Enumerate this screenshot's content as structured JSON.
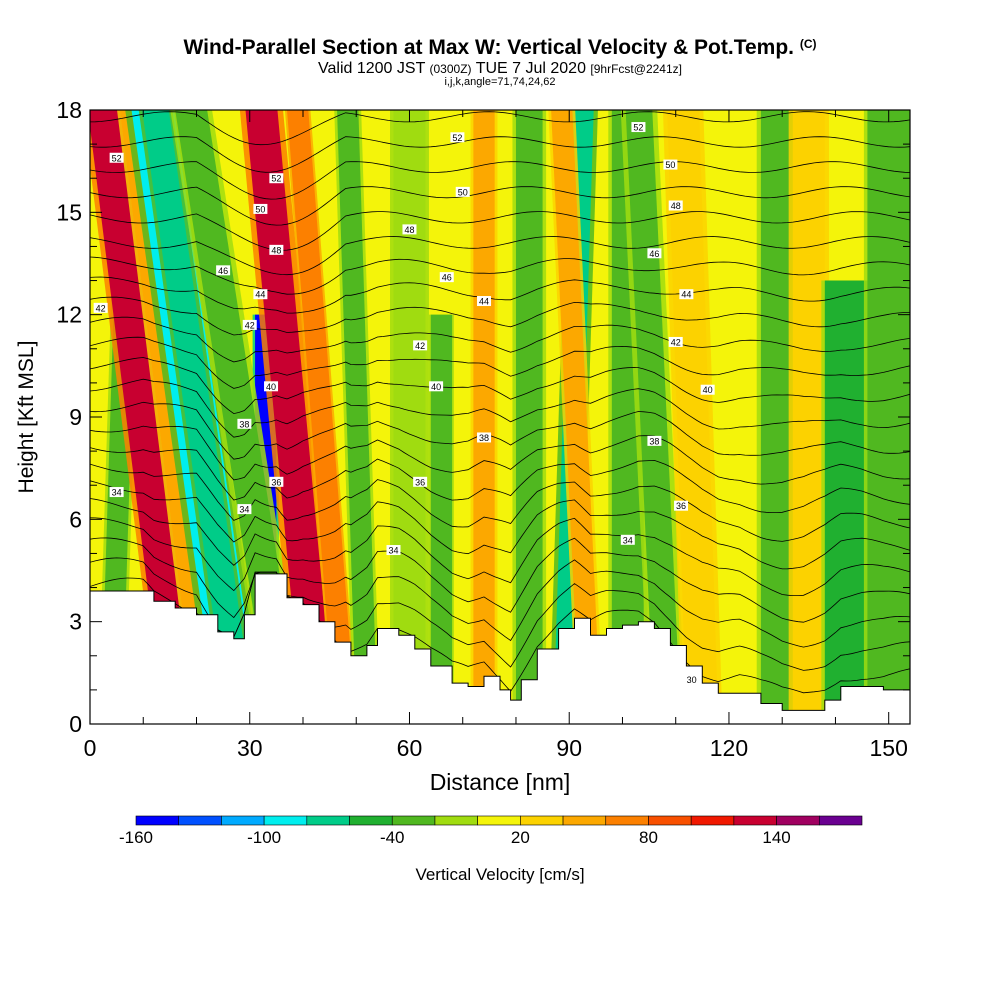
{
  "title": {
    "main": "Wind-Parallel Section at Max W: Vertical Velocity & Pot.Temp.",
    "copyright": "(C)",
    "valid_prefix": "Valid 1200 JST",
    "valid_utc": "(0300Z)",
    "valid_date": "TUE 7 Jul 2020",
    "forecast": "[9hrFcst@2241z]",
    "indices": "i,j,k,angle=71,74,24,62"
  },
  "chart_data": {
    "type": "heatmap",
    "xlabel": "Distance [nm]",
    "ylabel": "Height [Kft MSL]",
    "xlim": [
      0,
      154
    ],
    "ylim": [
      0,
      18
    ],
    "x_ticks": [
      0,
      30,
      60,
      90,
      120,
      150
    ],
    "y_ticks": [
      0,
      3,
      6,
      9,
      12,
      15,
      18
    ],
    "colorbar": {
      "label": "Vertical Velocity [cm/s]",
      "tick_labels": [
        "-160",
        "-100",
        "-40",
        "20",
        "80",
        "140"
      ],
      "tick_values": [
        -160,
        -100,
        -40,
        20,
        80,
        140
      ],
      "range": [
        -160,
        180
      ],
      "step": 20,
      "colors": [
        "#0000ff",
        "#0050ff",
        "#00aaff",
        "#00eeee",
        "#00cc88",
        "#20b030",
        "#50b820",
        "#a0dc10",
        "#f4f40a",
        "#fcd200",
        "#fca800",
        "#fc8000",
        "#f85000",
        "#f01800",
        "#c80030",
        "#a00060",
        "#6a0090"
      ]
    },
    "terrain": [
      [
        0,
        3.9
      ],
      [
        10,
        3.9
      ],
      [
        12,
        3.6
      ],
      [
        16,
        3.4
      ],
      [
        20,
        3.2
      ],
      [
        24,
        2.7
      ],
      [
        27,
        2.5
      ],
      [
        29,
        3.2
      ],
      [
        31,
        4.4
      ],
      [
        35,
        4.4
      ],
      [
        37,
        3.7
      ],
      [
        40,
        3.5
      ],
      [
        43,
        3.0
      ],
      [
        46,
        2.4
      ],
      [
        49,
        2.0
      ],
      [
        52,
        2.3
      ],
      [
        54,
        2.8
      ],
      [
        58,
        2.6
      ],
      [
        61,
        2.2
      ],
      [
        64,
        1.7
      ],
      [
        68,
        1.2
      ],
      [
        71,
        1.1
      ],
      [
        74,
        1.4
      ],
      [
        77,
        1.0
      ],
      [
        79,
        0.7
      ],
      [
        81,
        1.3
      ],
      [
        84,
        2.2
      ],
      [
        88,
        2.8
      ],
      [
        91,
        3.1
      ],
      [
        94,
        2.6
      ],
      [
        97,
        2.8
      ],
      [
        100,
        2.9
      ],
      [
        103,
        3.0
      ],
      [
        106,
        2.8
      ],
      [
        109,
        2.3
      ],
      [
        112,
        1.7
      ],
      [
        115,
        1.2
      ],
      [
        118,
        0.9
      ],
      [
        122,
        0.9
      ],
      [
        126,
        0.6
      ],
      [
        130,
        0.4
      ],
      [
        134,
        0.4
      ],
      [
        138,
        0.7
      ],
      [
        141,
        1.1
      ],
      [
        145,
        1.1
      ],
      [
        149,
        1.0
      ],
      [
        154,
        1.0
      ]
    ],
    "wfield": {
      "background": 10,
      "bands": [
        {
          "x0": 2,
          "x1": 6,
          "top": 18,
          "w": 8,
          "tilt": 0.2,
          "value": -25
        },
        {
          "x0": 14,
          "x1": 20,
          "top": 18,
          "w": 14,
          "tilt": -0.8,
          "value": 125
        },
        {
          "x0": 20,
          "x1": 26,
          "top": 18,
          "w": 8,
          "tilt": -0.8,
          "value": 45
        },
        {
          "x0": 24,
          "x1": 32,
          "top": 18,
          "w": 18,
          "tilt": -0.9,
          "value": -85
        },
        {
          "x0": 26,
          "x1": 31,
          "top": 18,
          "w": 10,
          "tilt": -0.9,
          "value": -75
        },
        {
          "x0": 31,
          "x1": 35,
          "top": 12,
          "w": 7,
          "tilt": 0,
          "value": -150
        },
        {
          "x0": 34,
          "x1": 40,
          "top": 18,
          "w": 14,
          "tilt": -1,
          "value": -30
        },
        {
          "x0": 40,
          "x1": 46,
          "top": 18,
          "w": 16,
          "tilt": -0.6,
          "value": 130
        },
        {
          "x0": 46,
          "x1": 50,
          "top": 18,
          "w": 6,
          "tilt": -0.5,
          "value": 70
        },
        {
          "x0": 50,
          "x1": 54,
          "top": 18,
          "w": 8,
          "tilt": -0.2,
          "value": -30
        },
        {
          "x0": 57,
          "x1": 63,
          "top": 18,
          "w": 10,
          "tilt": 0,
          "value": -20
        },
        {
          "x0": 64,
          "x1": 68,
          "top": 12,
          "w": 5,
          "tilt": 0,
          "value": -40
        },
        {
          "x0": 72,
          "x1": 76,
          "top": 18,
          "w": 8,
          "tilt": 0,
          "value": 40
        },
        {
          "x0": 80,
          "x1": 85,
          "top": 18,
          "w": 10,
          "tilt": 0,
          "value": -40
        },
        {
          "x0": 87,
          "x1": 91,
          "top": 18,
          "w": 12,
          "tilt": 0.2,
          "value": -75
        },
        {
          "x0": 92,
          "x1": 96,
          "top": 18,
          "w": 8,
          "tilt": -0.3,
          "value": 55
        },
        {
          "x0": 98,
          "x1": 104,
          "top": 18,
          "w": 10,
          "tilt": 0,
          "value": -30
        },
        {
          "x0": 106,
          "x1": 111,
          "top": 18,
          "w": 14,
          "tilt": -0.3,
          "value": -40
        },
        {
          "x0": 112,
          "x1": 118,
          "top": 18,
          "w": 12,
          "tilt": -0.2,
          "value": 35
        },
        {
          "x0": 126,
          "x1": 132,
          "top": 18,
          "w": 12,
          "tilt": 0,
          "value": -30
        },
        {
          "x0": 132,
          "x1": 138,
          "top": 18,
          "w": 12,
          "tilt": 0,
          "value": 35
        },
        {
          "x0": 138,
          "x1": 146,
          "top": 13,
          "w": 10,
          "tilt": 0,
          "value": -45
        },
        {
          "x0": 146,
          "x1": 154,
          "top": 18,
          "w": 10,
          "tilt": 0,
          "value": -25
        }
      ]
    },
    "theta_contours": {
      "levels": [
        30,
        31,
        32,
        33,
        34,
        35,
        36,
        37,
        38,
        39,
        40,
        41,
        42,
        43,
        44,
        45,
        46,
        47,
        48,
        49,
        50,
        51,
        52
      ],
      "labels": [
        {
          "x": 5,
          "y": 6.8,
          "text": "34"
        },
        {
          "x": 29,
          "y": 6.3,
          "text": "34"
        },
        {
          "x": 57,
          "y": 5.1,
          "text": "34"
        },
        {
          "x": 101,
          "y": 5.4,
          "text": "34"
        },
        {
          "x": 113,
          "y": 1.3,
          "text": "30"
        },
        {
          "x": 35,
          "y": 7.1,
          "text": "36"
        },
        {
          "x": 62,
          "y": 7.1,
          "text": "36"
        },
        {
          "x": 111,
          "y": 6.4,
          "text": "36"
        },
        {
          "x": 29,
          "y": 8.8,
          "text": "38"
        },
        {
          "x": 74,
          "y": 8.4,
          "text": "38"
        },
        {
          "x": 106,
          "y": 8.3,
          "text": "38"
        },
        {
          "x": 34,
          "y": 9.9,
          "text": "40"
        },
        {
          "x": 65,
          "y": 9.9,
          "text": "40"
        },
        {
          "x": 116,
          "y": 9.8,
          "text": "40"
        },
        {
          "x": 2,
          "y": 12.2,
          "text": "42"
        },
        {
          "x": 30,
          "y": 11.7,
          "text": "42"
        },
        {
          "x": 62,
          "y": 11.1,
          "text": "42"
        },
        {
          "x": 110,
          "y": 11.2,
          "text": "42"
        },
        {
          "x": 32,
          "y": 12.6,
          "text": "44"
        },
        {
          "x": 74,
          "y": 12.4,
          "text": "44"
        },
        {
          "x": 112,
          "y": 12.6,
          "text": "44"
        },
        {
          "x": 25,
          "y": 13.3,
          "text": "46"
        },
        {
          "x": 67,
          "y": 13.1,
          "text": "46"
        },
        {
          "x": 106,
          "y": 13.8,
          "text": "46"
        },
        {
          "x": 35,
          "y": 13.9,
          "text": "48"
        },
        {
          "x": 60,
          "y": 14.5,
          "text": "48"
        },
        {
          "x": 110,
          "y": 15.2,
          "text": "48"
        },
        {
          "x": 32,
          "y": 15.1,
          "text": "50"
        },
        {
          "x": 70,
          "y": 15.6,
          "text": "50"
        },
        {
          "x": 109,
          "y": 16.4,
          "text": "50"
        },
        {
          "x": 5,
          "y": 16.6,
          "text": "52"
        },
        {
          "x": 35,
          "y": 16.0,
          "text": "52"
        },
        {
          "x": 69,
          "y": 17.2,
          "text": "52"
        },
        {
          "x": 103,
          "y": 17.5,
          "text": "52"
        }
      ]
    }
  }
}
